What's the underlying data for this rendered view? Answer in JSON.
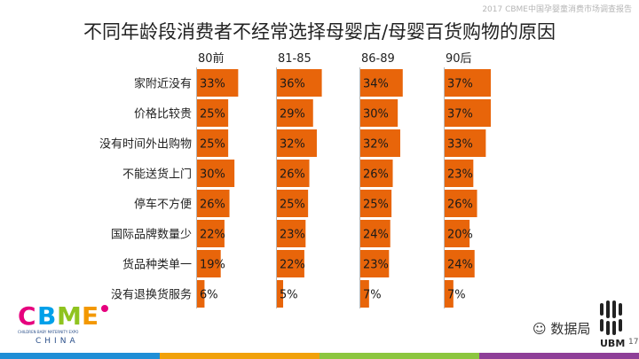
{
  "header": {
    "report_title": "2017 CBME中国孕婴童消费市场调查报告",
    "page_number": "17"
  },
  "brand": {
    "logo_text": "CBME",
    "logo_tagline": "CHILDREN BABY MATERNITY EXPO",
    "logo_sub": "CHINA",
    "wechat_name": "数据局",
    "ubm_text": "UBM"
  },
  "colors": {
    "bar": "#e8650a",
    "divider": "#b9b9b9",
    "footer": [
      "#1f8ed6",
      "#f1a10a",
      "#8cc63f",
      "#8e3f98"
    ]
  },
  "chart_data": {
    "type": "bar",
    "orientation": "horizontal",
    "layout": "small-multiples",
    "title": "不同年龄段消费者不经常选择母婴店/母婴百货购物的原因",
    "categories": [
      "家附近没有",
      "价格比较贵",
      "没有时间外出购物",
      "不能送货上门",
      "停车不方便",
      "国际品牌数量少",
      "货品种类单一",
      "没有退换货服务"
    ],
    "series": [
      {
        "name": "80前",
        "values": [
          33,
          25,
          25,
          30,
          26,
          22,
          19,
          6
        ]
      },
      {
        "name": "81-85",
        "values": [
          36,
          29,
          32,
          26,
          25,
          23,
          22,
          5
        ]
      },
      {
        "name": "86-89",
        "values": [
          34,
          30,
          32,
          26,
          25,
          24,
          23,
          7
        ]
      },
      {
        "name": "90后",
        "values": [
          37,
          37,
          33,
          23,
          26,
          20,
          24,
          7
        ]
      }
    ],
    "value_format": "{v}%",
    "xlim": [
      0,
      37
    ]
  }
}
